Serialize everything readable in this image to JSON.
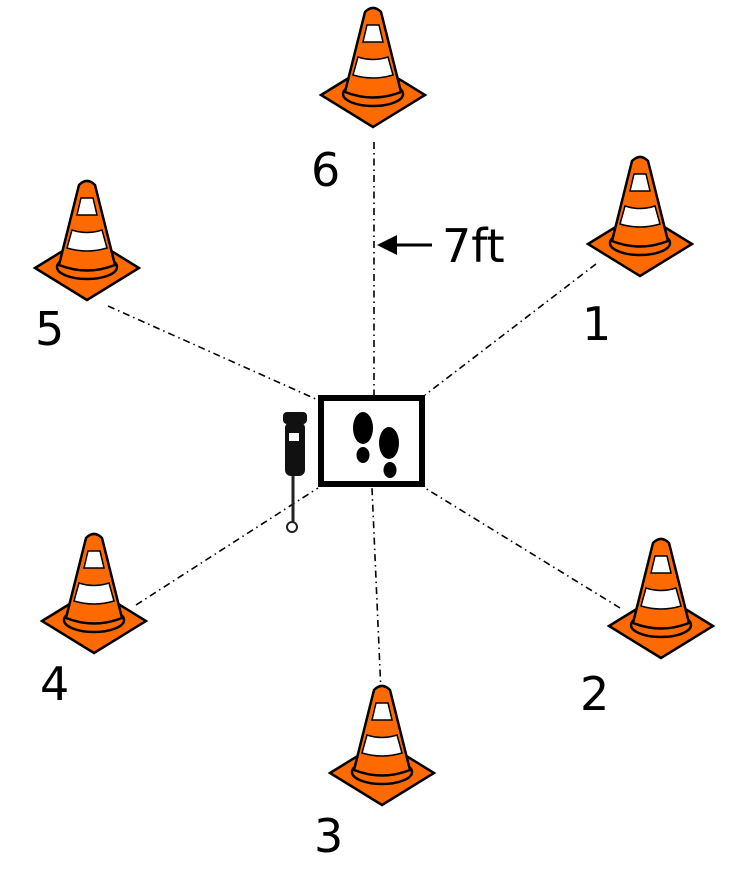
{
  "diagram": {
    "distance_label": "7ft",
    "cones": [
      {
        "id": "cone-6",
        "label": "6"
      },
      {
        "id": "cone-1",
        "label": "1"
      },
      {
        "id": "cone-2",
        "label": "2"
      },
      {
        "id": "cone-3",
        "label": "3"
      },
      {
        "id": "cone-4",
        "label": "4"
      },
      {
        "id": "cone-5",
        "label": "5"
      }
    ],
    "center_marker_icon": "footprints-icon",
    "device_icon": "handheld-device-icon",
    "colors": {
      "cone_orange": "#FF6A00",
      "cone_stripe": "#FFFFFF",
      "outline": "#000000",
      "background": "#FFFFFF"
    }
  }
}
